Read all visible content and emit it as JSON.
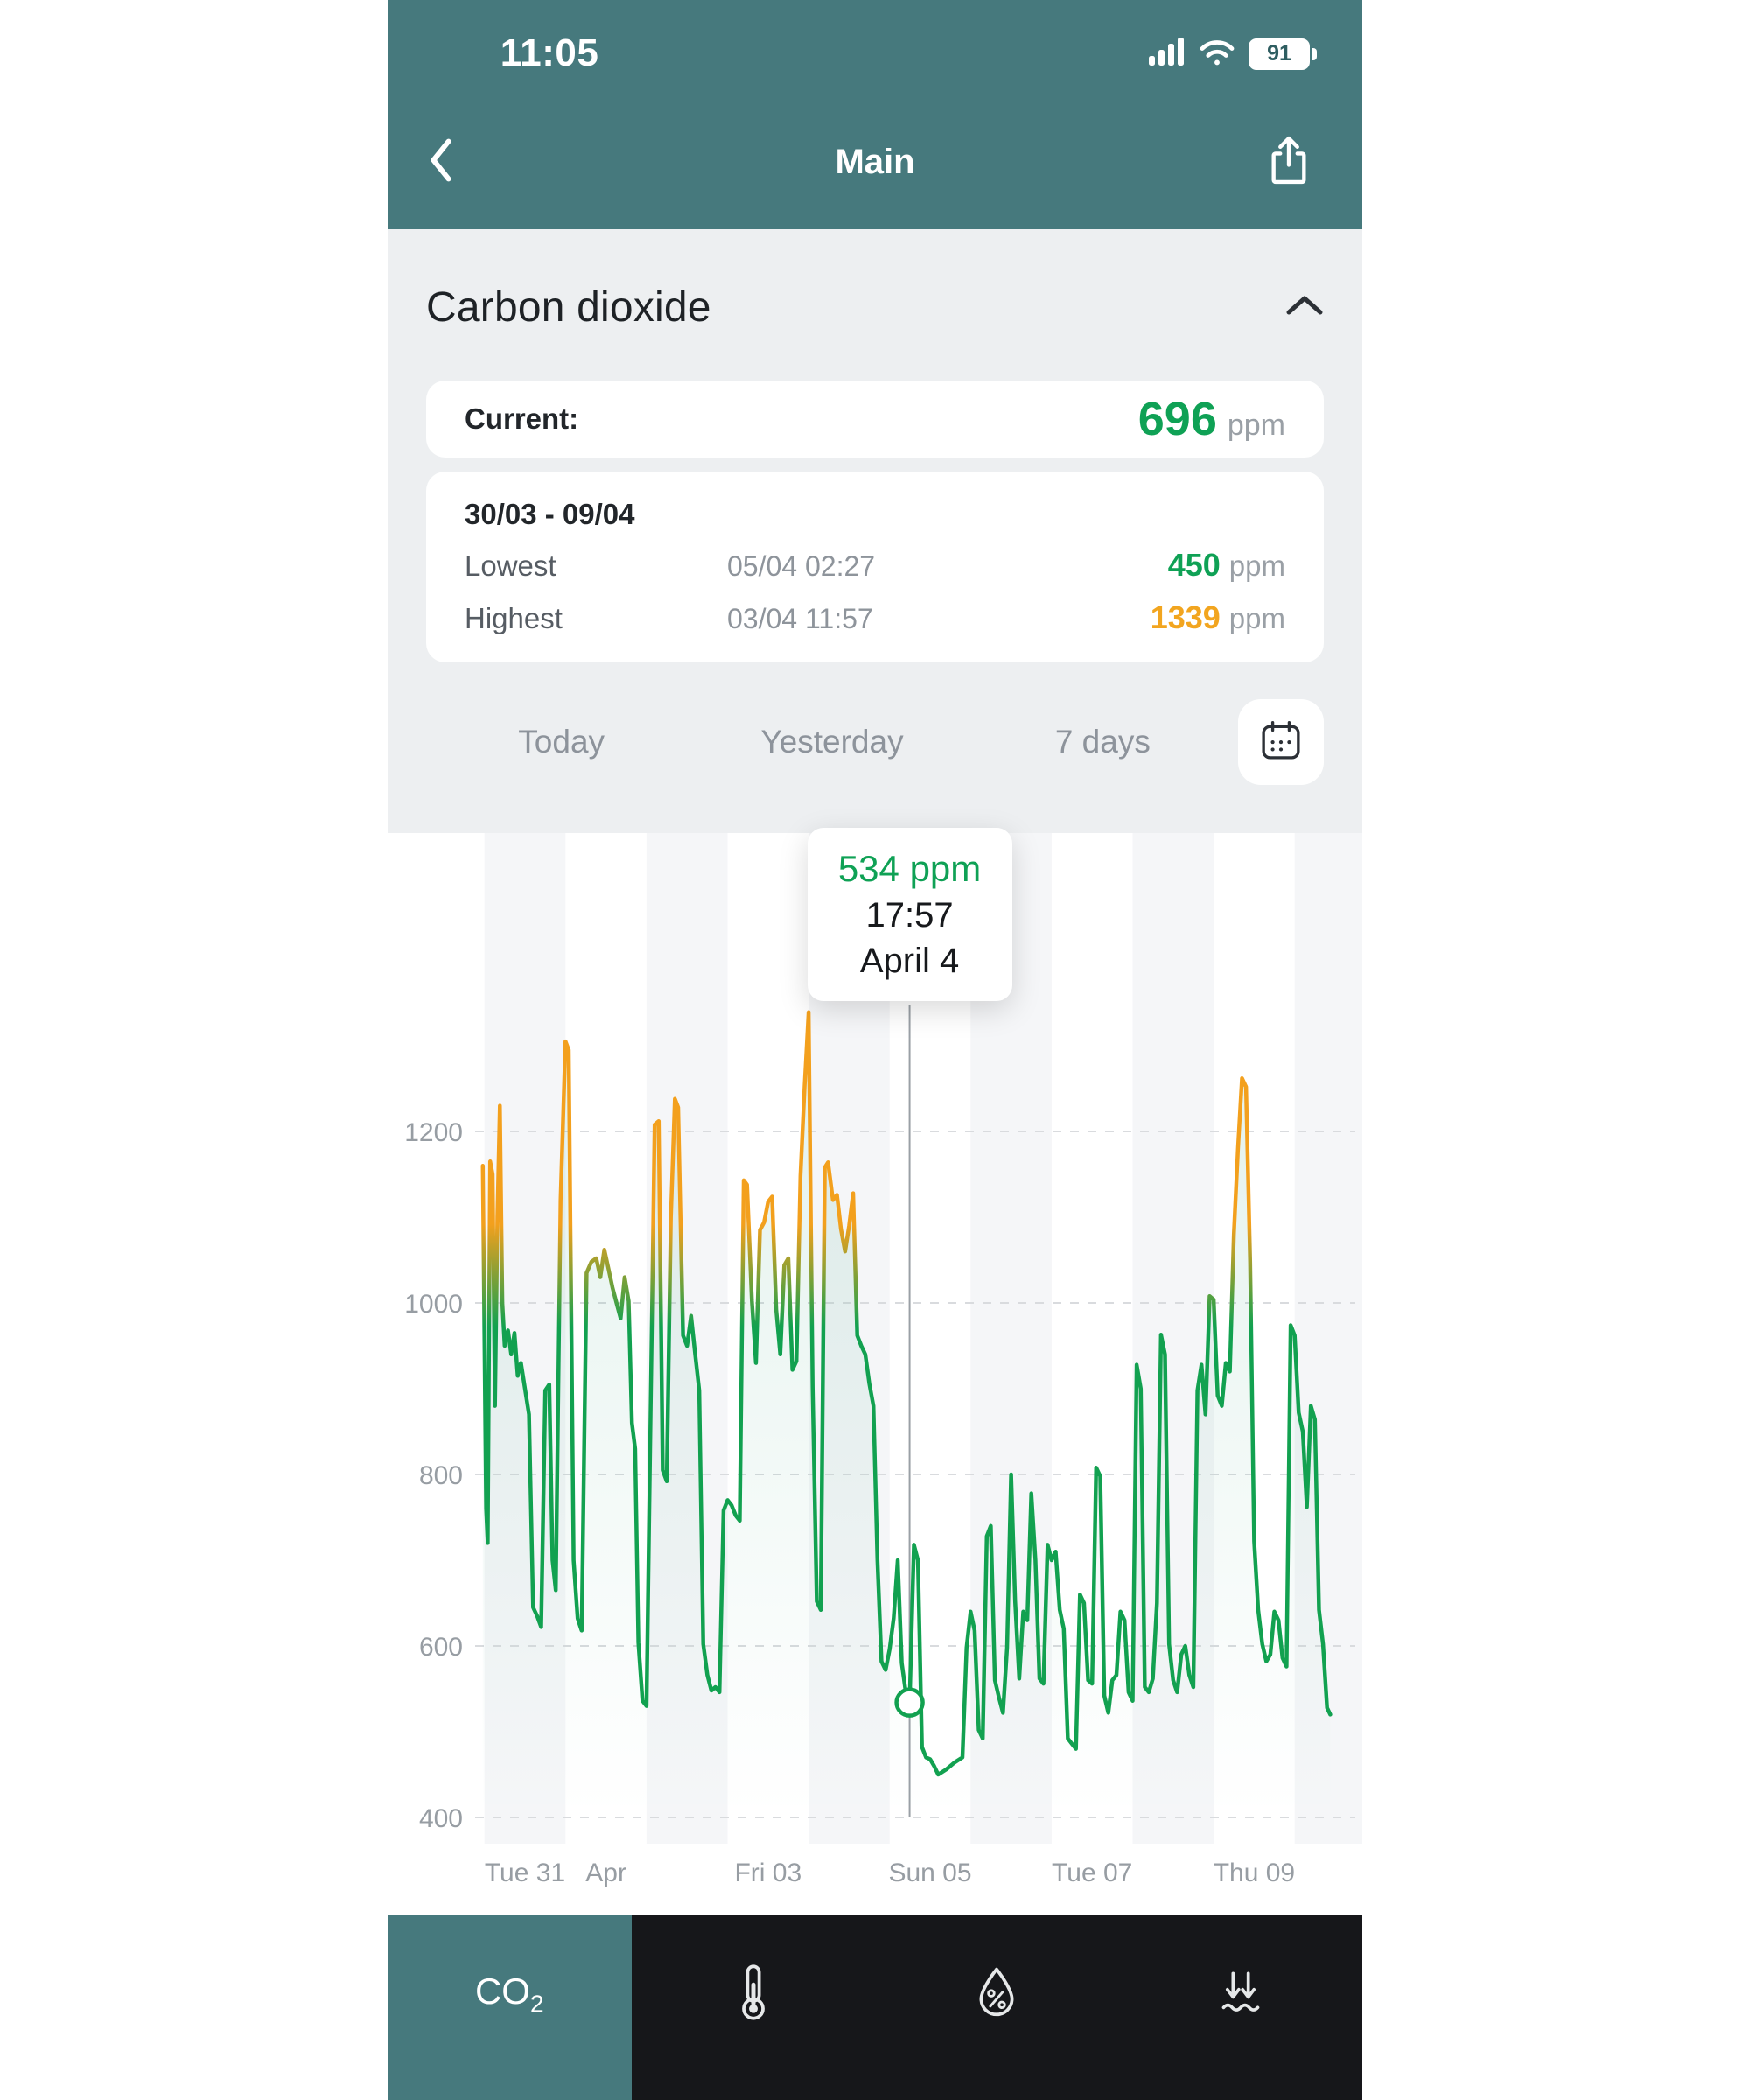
{
  "status_bar": {
    "time": "11:05",
    "battery": "91"
  },
  "nav": {
    "title": "Main"
  },
  "sensor": {
    "title": "Carbon dioxide",
    "current_label": "Current:",
    "current_value": "696",
    "unit": "ppm",
    "range_title": "30/03 - 09/04",
    "lowest_label": "Lowest",
    "lowest_time": "05/04 02:27",
    "lowest_value": "450",
    "highest_label": "Highest",
    "highest_time": "03/04 11:57",
    "highest_value": "1339"
  },
  "periods": {
    "today": "Today",
    "yesterday": "Yesterday",
    "seven_days": "7 days"
  },
  "tooltip": {
    "value": "534 ppm",
    "time": "17:57",
    "date": "April 4"
  },
  "tabbar": {
    "items": [
      {
        "name": "co2",
        "label": "CO₂",
        "active": true
      },
      {
        "name": "temperature",
        "icon": "thermometer-icon"
      },
      {
        "name": "humidity",
        "icon": "humidity-icon"
      },
      {
        "name": "pressure",
        "icon": "pressure-icon"
      }
    ]
  },
  "colors": {
    "teal": "#46797D",
    "green": "#0FA155",
    "orange": "#F2A51F",
    "gray_bg": "#EDEFF1",
    "text_dark": "#1E2226",
    "text_gray": "#8E949B"
  },
  "chart_data": {
    "type": "line",
    "title": "Carbon dioxide concentration, 30/03 - 09/04",
    "ylabel": "ppm",
    "x_unit": "days since 30/03 00:00",
    "ylim": [
      380,
      1400
    ],
    "grid": "horizontal-dashed",
    "threshold_ppm": 1000,
    "color_below": "#12A150",
    "color_above": "#F3A01D",
    "y_ticks": [
      400,
      600,
      800,
      1000,
      1200
    ],
    "x_ticks": [
      {
        "d": 1,
        "label": "Tue 31"
      },
      {
        "d": 2,
        "label": "Apr"
      },
      {
        "d": 4,
        "label": "Fri 03"
      },
      {
        "d": 6,
        "label": "Sun 05"
      },
      {
        "d": 8,
        "label": "Tue 07"
      },
      {
        "d": 10,
        "label": "Thu 09"
      }
    ],
    "selected_point": {
      "d": 5.747,
      "ppm": 534,
      "time": "17:57",
      "date": "April 4"
    },
    "series": [
      [
        0.48,
        1160
      ],
      [
        0.52,
        760
      ],
      [
        0.54,
        720
      ],
      [
        0.57,
        1165
      ],
      [
        0.6,
        1150
      ],
      [
        0.63,
        880
      ],
      [
        0.66,
        1100
      ],
      [
        0.69,
        1230
      ],
      [
        0.72,
        1000
      ],
      [
        0.75,
        950
      ],
      [
        0.79,
        968
      ],
      [
        0.83,
        940
      ],
      [
        0.87,
        965
      ],
      [
        0.91,
        915
      ],
      [
        0.95,
        930
      ],
      [
        1.0,
        900
      ],
      [
        1.05,
        870
      ],
      [
        1.1,
        645
      ],
      [
        1.15,
        635
      ],
      [
        1.2,
        622
      ],
      [
        1.25,
        898
      ],
      [
        1.3,
        905
      ],
      [
        1.34,
        700
      ],
      [
        1.38,
        665
      ],
      [
        1.44,
        1120
      ],
      [
        1.5,
        1305
      ],
      [
        1.54,
        1295
      ],
      [
        1.6,
        700
      ],
      [
        1.65,
        632
      ],
      [
        1.7,
        618
      ],
      [
        1.76,
        1035
      ],
      [
        1.82,
        1048
      ],
      [
        1.88,
        1052
      ],
      [
        1.93,
        1030
      ],
      [
        1.98,
        1062
      ],
      [
        2.03,
        1040
      ],
      [
        2.08,
        1018
      ],
      [
        2.13,
        1000
      ],
      [
        2.18,
        982
      ],
      [
        2.23,
        1030
      ],
      [
        2.28,
        1002
      ],
      [
        2.32,
        860
      ],
      [
        2.36,
        830
      ],
      [
        2.4,
        604
      ],
      [
        2.45,
        536
      ],
      [
        2.5,
        530
      ],
      [
        2.55,
        868
      ],
      [
        2.6,
        1208
      ],
      [
        2.65,
        1212
      ],
      [
        2.7,
        805
      ],
      [
        2.75,
        792
      ],
      [
        2.8,
        1100
      ],
      [
        2.85,
        1238
      ],
      [
        2.89,
        1228
      ],
      [
        2.95,
        962
      ],
      [
        3.0,
        950
      ],
      [
        3.05,
        985
      ],
      [
        3.1,
        940
      ],
      [
        3.15,
        898
      ],
      [
        3.2,
        602
      ],
      [
        3.25,
        566
      ],
      [
        3.3,
        548
      ],
      [
        3.35,
        552
      ],
      [
        3.4,
        546
      ],
      [
        3.45,
        758
      ],
      [
        3.5,
        770
      ],
      [
        3.55,
        764
      ],
      [
        3.6,
        752
      ],
      [
        3.65,
        746
      ],
      [
        3.7,
        1143
      ],
      [
        3.74,
        1138
      ],
      [
        3.8,
        1002
      ],
      [
        3.85,
        930
      ],
      [
        3.9,
        1085
      ],
      [
        3.95,
        1094
      ],
      [
        4.0,
        1118
      ],
      [
        4.05,
        1124
      ],
      [
        4.1,
        992
      ],
      [
        4.15,
        940
      ],
      [
        4.2,
        1044
      ],
      [
        4.25,
        1052
      ],
      [
        4.3,
        922
      ],
      [
        4.35,
        932
      ],
      [
        4.4,
        1148
      ],
      [
        4.45,
        1252
      ],
      [
        4.5,
        1339
      ],
      [
        4.55,
        902
      ],
      [
        4.6,
        652
      ],
      [
        4.65,
        642
      ],
      [
        4.7,
        1158
      ],
      [
        4.74,
        1164
      ],
      [
        4.8,
        1120
      ],
      [
        4.85,
        1126
      ],
      [
        4.9,
        1086
      ],
      [
        4.95,
        1060
      ],
      [
        5.0,
        1090
      ],
      [
        5.05,
        1128
      ],
      [
        5.1,
        962
      ],
      [
        5.15,
        950
      ],
      [
        5.2,
        940
      ],
      [
        5.25,
        906
      ],
      [
        5.3,
        880
      ],
      [
        5.35,
        700
      ],
      [
        5.4,
        582
      ],
      [
        5.45,
        572
      ],
      [
        5.5,
        596
      ],
      [
        5.55,
        632
      ],
      [
        5.6,
        700
      ],
      [
        5.65,
        580
      ],
      [
        5.7,
        546
      ],
      [
        5.747,
        534
      ],
      [
        5.8,
        718
      ],
      [
        5.85,
        700
      ],
      [
        5.9,
        482
      ],
      [
        5.95,
        470
      ],
      [
        6.0,
        468
      ],
      [
        6.05,
        460
      ],
      [
        6.1,
        450
      ],
      [
        6.2,
        456
      ],
      [
        6.3,
        464
      ],
      [
        6.4,
        470
      ],
      [
        6.45,
        598
      ],
      [
        6.5,
        640
      ],
      [
        6.55,
        618
      ],
      [
        6.6,
        502
      ],
      [
        6.65,
        492
      ],
      [
        6.7,
        728
      ],
      [
        6.75,
        740
      ],
      [
        6.8,
        560
      ],
      [
        6.85,
        540
      ],
      [
        6.9,
        522
      ],
      [
        6.95,
        598
      ],
      [
        7.0,
        800
      ],
      [
        7.05,
        652
      ],
      [
        7.1,
        562
      ],
      [
        7.15,
        640
      ],
      [
        7.2,
        630
      ],
      [
        7.25,
        778
      ],
      [
        7.3,
        700
      ],
      [
        7.35,
        562
      ],
      [
        7.4,
        556
      ],
      [
        7.45,
        718
      ],
      [
        7.5,
        700
      ],
      [
        7.55,
        710
      ],
      [
        7.6,
        642
      ],
      [
        7.65,
        620
      ],
      [
        7.7,
        492
      ],
      [
        7.75,
        486
      ],
      [
        7.8,
        480
      ],
      [
        7.85,
        660
      ],
      [
        7.9,
        650
      ],
      [
        7.95,
        560
      ],
      [
        8.0,
        556
      ],
      [
        8.05,
        808
      ],
      [
        8.1,
        798
      ],
      [
        8.15,
        542
      ],
      [
        8.2,
        522
      ],
      [
        8.25,
        560
      ],
      [
        8.3,
        566
      ],
      [
        8.35,
        640
      ],
      [
        8.4,
        630
      ],
      [
        8.45,
        546
      ],
      [
        8.5,
        536
      ],
      [
        8.55,
        928
      ],
      [
        8.6,
        900
      ],
      [
        8.65,
        552
      ],
      [
        8.7,
        546
      ],
      [
        8.75,
        562
      ],
      [
        8.8,
        650
      ],
      [
        8.85,
        963
      ],
      [
        8.9,
        940
      ],
      [
        8.95,
        602
      ],
      [
        9.0,
        560
      ],
      [
        9.05,
        546
      ],
      [
        9.1,
        590
      ],
      [
        9.15,
        600
      ],
      [
        9.2,
        566
      ],
      [
        9.25,
        552
      ],
      [
        9.3,
        898
      ],
      [
        9.35,
        928
      ],
      [
        9.4,
        870
      ],
      [
        9.45,
        1008
      ],
      [
        9.5,
        1004
      ],
      [
        9.55,
        892
      ],
      [
        9.6,
        880
      ],
      [
        9.65,
        930
      ],
      [
        9.7,
        920
      ],
      [
        9.75,
        1080
      ],
      [
        9.8,
        1180
      ],
      [
        9.85,
        1262
      ],
      [
        9.9,
        1252
      ],
      [
        9.95,
        1048
      ],
      [
        10.0,
        722
      ],
      [
        10.05,
        642
      ],
      [
        10.1,
        602
      ],
      [
        10.15,
        582
      ],
      [
        10.2,
        590
      ],
      [
        10.25,
        640
      ],
      [
        10.3,
        630
      ],
      [
        10.35,
        586
      ],
      [
        10.4,
        576
      ],
      [
        10.45,
        974
      ],
      [
        10.5,
        962
      ],
      [
        10.55,
        872
      ],
      [
        10.6,
        850
      ],
      [
        10.65,
        762
      ],
      [
        10.7,
        880
      ],
      [
        10.75,
        864
      ],
      [
        10.8,
        642
      ],
      [
        10.85,
        602
      ],
      [
        10.9,
        528
      ],
      [
        10.94,
        520
      ]
    ]
  }
}
